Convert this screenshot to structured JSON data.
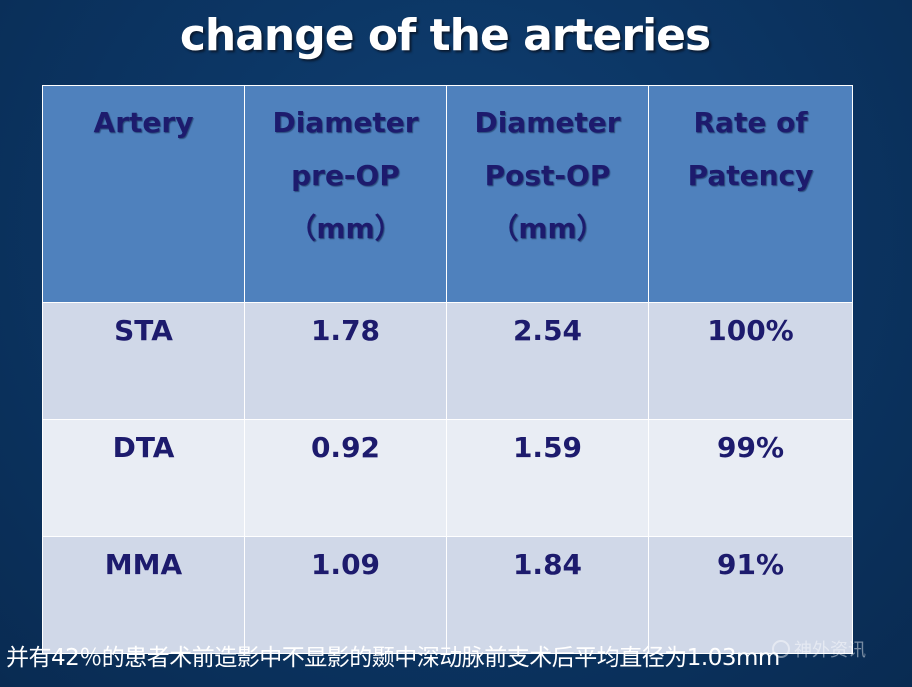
{
  "title": "change of the arteries",
  "table": {
    "headers": [
      [
        "Artery"
      ],
      [
        "Diameter",
        "pre-OP",
        "（mm）"
      ],
      [
        "Diameter",
        "Post-OP",
        "（mm）"
      ],
      [
        "Rate of",
        "Patency"
      ]
    ],
    "rows": [
      [
        "STA",
        "1.78",
        "2.54",
        "100%"
      ],
      [
        "DTA",
        "0.92",
        "1.59",
        "99%"
      ],
      [
        "MMA",
        "1.09",
        "1.84",
        "91%"
      ]
    ]
  },
  "footnote": "并有42％的患者术前造影中不显影的颞中深动脉前支术后平均直径为1.03mm",
  "watermark": "神外资讯",
  "colors": {
    "background": "#0c3563",
    "header_fill": "#4f81bd",
    "row_odd": "#d0d8e8",
    "row_even": "#e9edf4",
    "cell_text": "#1d1b6d"
  }
}
